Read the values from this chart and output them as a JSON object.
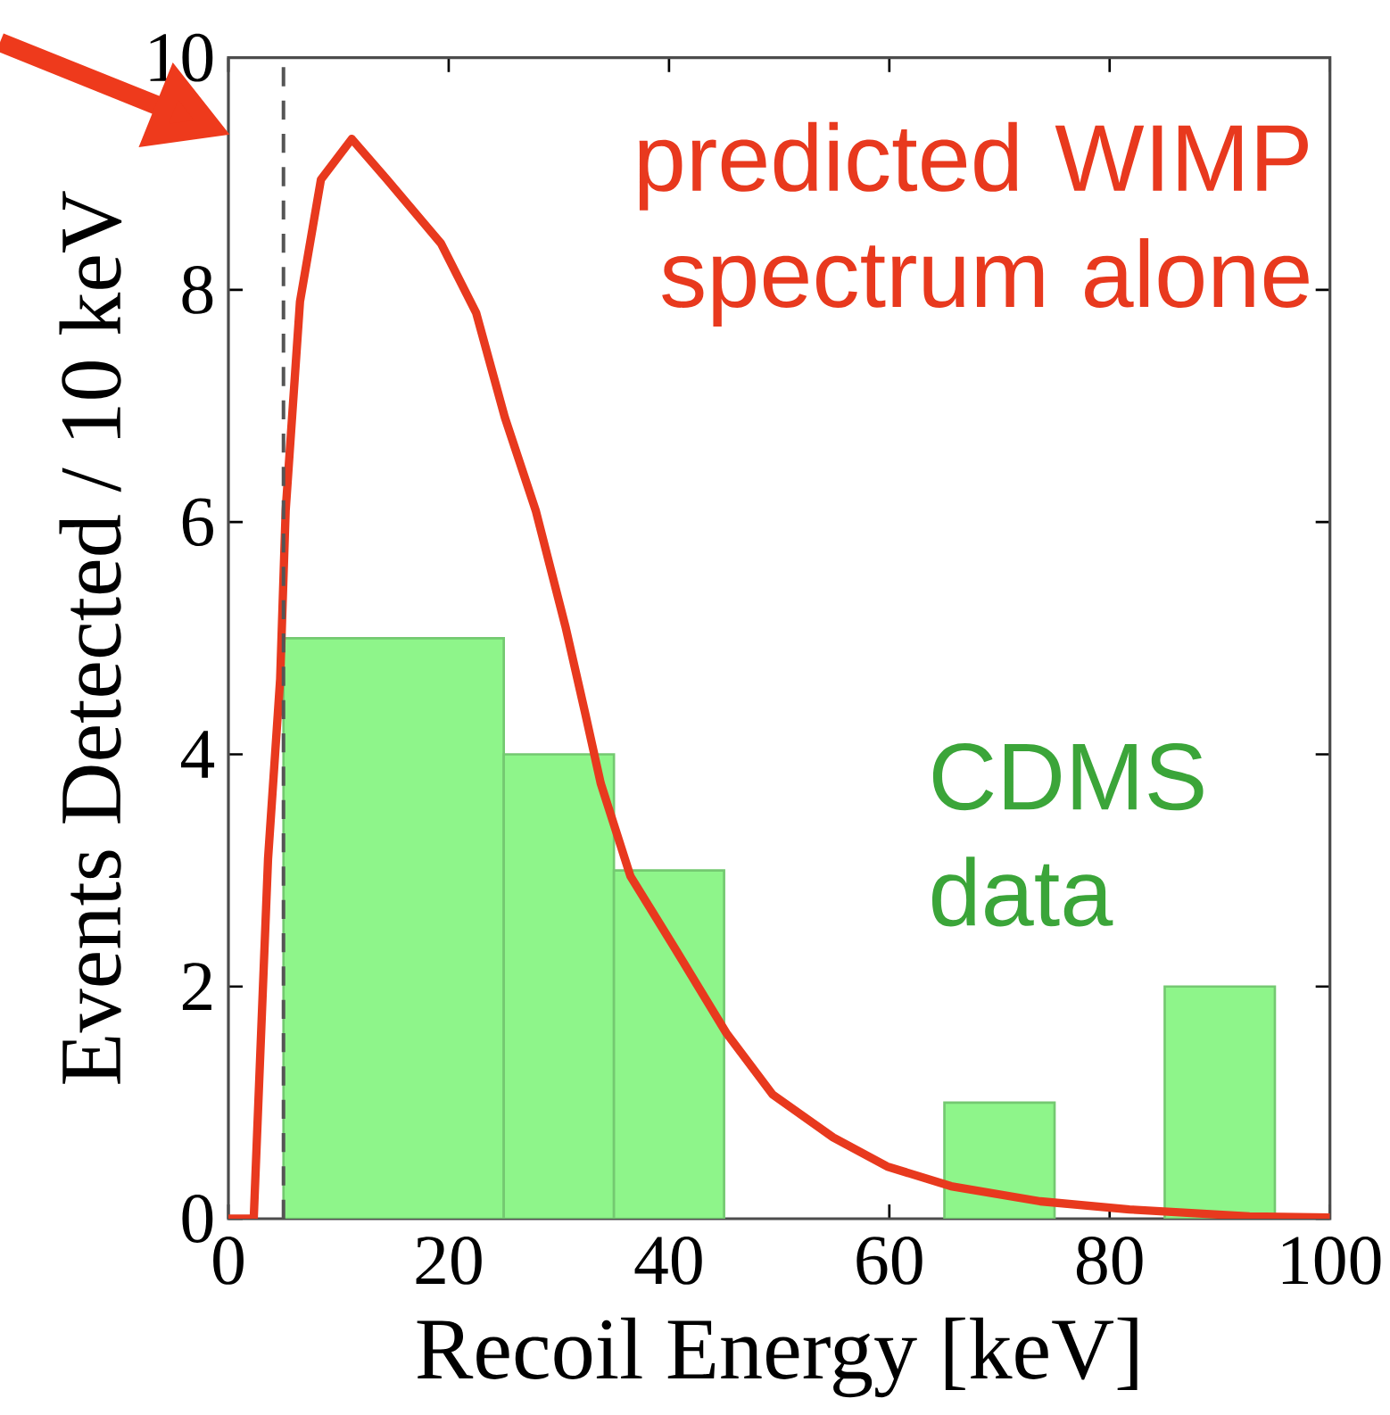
{
  "chart_data": {
    "type": "histogram",
    "xlabel": "Recoil Energy [keV]",
    "ylabel": "Events Detected / 10 keV",
    "xlim": [
      0,
      100
    ],
    "ylim": [
      0,
      10
    ],
    "xticks": [
      0,
      20,
      40,
      60,
      80,
      100
    ],
    "yticks": [
      0,
      2,
      4,
      6,
      8,
      10
    ],
    "series": [
      {
        "name": "CDMS data",
        "color": "#8ef58a",
        "bins": [
          5,
          25,
          35,
          45,
          65,
          75,
          85,
          95
        ],
        "values": [
          5,
          4,
          3,
          0,
          1,
          0,
          2
        ]
      },
      {
        "name": "predicted WIMP spectrum alone",
        "type": "line",
        "color": "#e8391e",
        "x": [
          0,
          2.3,
          3.6,
          4.7,
          5.2,
          6.5,
          8.4,
          11.2,
          14.4,
          19.3,
          22.5,
          25.1,
          27.9,
          30.6,
          32.4,
          33.8,
          36.5,
          40.4,
          45.2,
          49.4,
          54.9,
          59.8,
          65.6,
          73.7,
          81.8,
          92.7,
          100
        ],
        "values": [
          0,
          0,
          3.1,
          4.65,
          6.1,
          7.9,
          8.95,
          9.3,
          8.95,
          8.4,
          7.8,
          6.9,
          6.1,
          5.1,
          4.35,
          3.75,
          2.95,
          2.35,
          1.6,
          1.07,
          0.7,
          0.45,
          0.28,
          0.15,
          0.08,
          0.02,
          0.01
        ]
      }
    ],
    "ref_lines": [
      {
        "axis": "x",
        "value": 5,
        "color": "#555555",
        "line_style": "dashed"
      }
    ]
  }
}
